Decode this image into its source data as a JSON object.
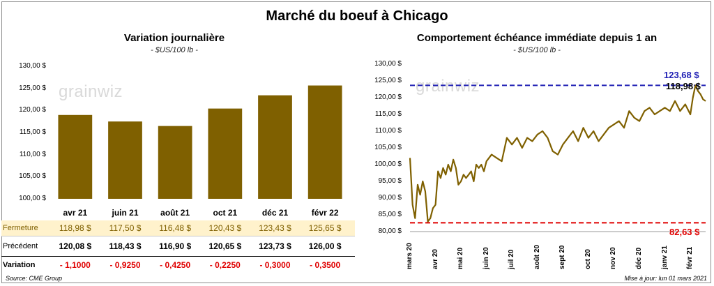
{
  "page": {
    "title": "Marché du boeuf à Chicago",
    "source": "Source: CME Group",
    "updated": "Mise à jour: lun 01 mars 2021",
    "watermark": "grainwiz"
  },
  "colors": {
    "bar": "#7f6000",
    "line": "#7f6000",
    "high": "#1f1fb4",
    "low": "#e00000",
    "highlight_row": "#fff2cc"
  },
  "chart_data": [
    {
      "type": "bar",
      "title": "Variation  journalière",
      "subtitle": "- $US/100 lb -",
      "categories": [
        "avr 21",
        "juin 21",
        "août 21",
        "oct 21",
        "déc 21",
        "févr 22"
      ],
      "values": [
        118.98,
        117.5,
        116.48,
        120.43,
        123.43,
        125.65
      ],
      "ylim": [
        100,
        130
      ],
      "yticks": [
        "130,00 $",
        "125,00 $",
        "120,00 $",
        "115,00 $",
        "110,00 $",
        "105,00 $",
        "100,00 $"
      ],
      "table": {
        "fermeture_label": "Fermeture",
        "fermeture": [
          "118,98",
          "117,50",
          "116,48",
          "120,43",
          "123,43",
          "125,65"
        ],
        "precedent_label": "Précédent",
        "precedent": [
          "120,08",
          "118,43",
          "116,90",
          "120,65",
          "123,73",
          "126,00"
        ],
        "variation_label": "Variation",
        "variation": [
          "- 1,1000",
          "- 0,9250",
          "- 0,4250",
          "- 0,2250",
          "- 0,3000",
          "- 0,3500"
        ],
        "currency": "$"
      }
    },
    {
      "type": "line",
      "title": "Comportement  échéance immédiate depuis 1 an",
      "subtitle": "- $US/100 lb -",
      "ylim": [
        80,
        130
      ],
      "yticks": [
        "130,00 $",
        "125,00 $",
        "120,00 $",
        "115,00 $",
        "110,00 $",
        "105,00 $",
        "100,00 $",
        "95,00 $",
        "90,00 $",
        "85,00 $",
        "80,00 $"
      ],
      "xlabels": [
        "mars 20",
        "avr 20",
        "mai 20",
        "juin 20",
        "juil 20",
        "août 20",
        "sept 20",
        "oct 20",
        "nov 20",
        "déc 20",
        "janv 21",
        "févr 21"
      ],
      "high": 123.68,
      "high_label": "123,68 $",
      "low": 82.63,
      "low_label": "82,63 $",
      "last_label": "118,98 $",
      "series": [
        {
          "x": [
            0,
            0.1,
            0.2,
            0.3,
            0.4,
            0.5,
            0.6,
            0.7,
            0.8,
            0.9,
            1.0,
            1.1,
            1.2,
            1.3,
            1.4,
            1.5,
            1.6,
            1.7,
            1.8,
            1.9,
            2.0,
            2.1,
            2.2,
            2.3,
            2.4,
            2.5,
            2.6,
            2.7,
            2.8,
            2.9,
            3.0,
            3.2,
            3.4,
            3.6,
            3.8,
            4.0,
            4.2,
            4.4,
            4.6,
            4.8,
            5.0,
            5.2,
            5.4,
            5.6,
            5.8,
            6.0,
            6.2,
            6.4,
            6.6,
            6.8,
            7.0,
            7.2,
            7.4,
            7.6,
            7.8,
            8.0,
            8.2,
            8.4,
            8.6,
            8.8,
            9.0,
            9.2,
            9.4,
            9.6,
            9.8,
            10.0,
            10.2,
            10.4,
            10.6,
            10.8,
            11.0,
            11.1,
            11.2,
            11.3,
            11.4,
            11.5,
            11.6
          ],
          "y": [
            102,
            88,
            84,
            94,
            91,
            95,
            92,
            83,
            84,
            87,
            88,
            98,
            96,
            99,
            97,
            100,
            98,
            101.5,
            99,
            94,
            95,
            97,
            96,
            97,
            98,
            95,
            100,
            99,
            100,
            98,
            101,
            103,
            102,
            101,
            108,
            106,
            108,
            105,
            108,
            107,
            109,
            110,
            108,
            104,
            103,
            106,
            108,
            110,
            107,
            111,
            108,
            110,
            107,
            109,
            111,
            112,
            113,
            111,
            116,
            114,
            113,
            116,
            117,
            115,
            116,
            117,
            116,
            119,
            116,
            118,
            115,
            120,
            123.68,
            122,
            121,
            119.5,
            118.98
          ]
        }
      ]
    }
  ]
}
